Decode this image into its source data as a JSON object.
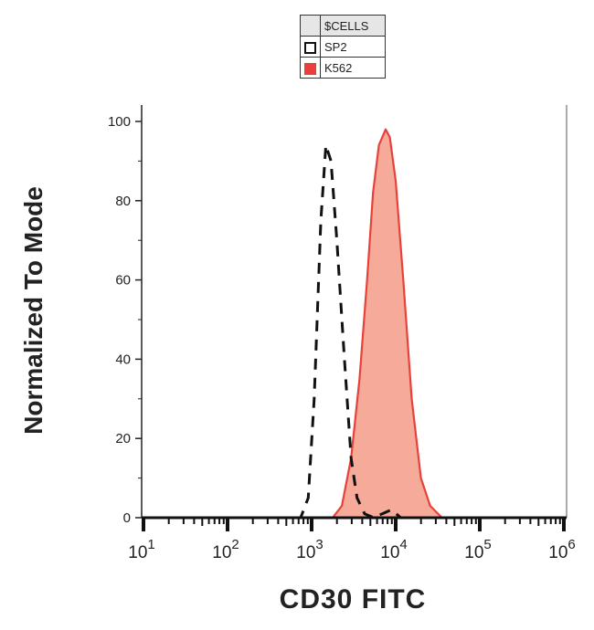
{
  "chart_data": {
    "type": "area",
    "title": "",
    "xlabel": "CD30 FITC",
    "ylabel": "Normalized To Mode",
    "x_scale": "log",
    "xlim": [
      10,
      1000000
    ],
    "ylim": [
      0,
      100
    ],
    "x_ticks": [
      {
        "base": "10",
        "exp": "1"
      },
      {
        "base": "10",
        "exp": "2"
      },
      {
        "base": "10",
        "exp": "3"
      },
      {
        "base": "10",
        "exp": "4"
      },
      {
        "base": "10",
        "exp": "5"
      },
      {
        "base": "10",
        "exp": "6"
      }
    ],
    "y_ticks": [
      "0",
      "20",
      "40",
      "60",
      "80",
      "100"
    ],
    "legend": {
      "header": "$CELLS",
      "placement": "top-center",
      "entries": [
        "SP2",
        "K562"
      ]
    },
    "series": [
      {
        "name": "SP2",
        "style": "dashed",
        "color": "#111111",
        "fill": "none",
        "x": [
          10,
          741,
          912,
          1072,
          1288,
          1479,
          1698,
          1995,
          2455,
          2951,
          3467,
          4266,
          5495,
          6918,
          8913,
          11482,
          1000000
        ],
        "y": [
          0,
          0,
          5,
          30,
          75,
          94,
          90,
          70,
          40,
          15,
          5,
          1,
          0,
          1,
          2,
          0,
          0
        ]
      },
      {
        "name": "K562",
        "style": "solid",
        "color": "#e8413a",
        "fill": "#f5aa9a",
        "x": [
          10,
          1778,
          2291,
          2951,
          3715,
          4571,
          5370,
          6310,
          7586,
          8511,
          10000,
          12303,
          15488,
          19953,
          25704,
          35481,
          1000000
        ],
        "y": [
          0,
          0,
          3,
          15,
          35,
          60,
          82,
          94,
          98,
          96,
          85,
          60,
          30,
          10,
          3,
          0,
          0
        ]
      }
    ]
  }
}
